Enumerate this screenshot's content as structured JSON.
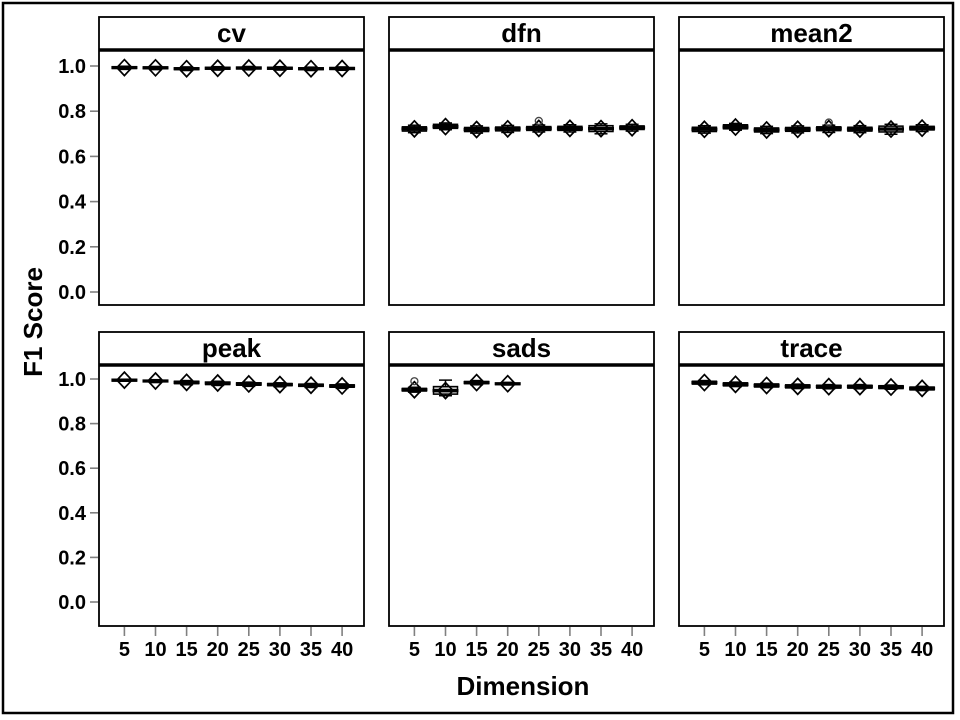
{
  "chart_data": {
    "type": "bar",
    "subtype": "boxplot-trellis-grid",
    "title": "",
    "xlabel": "Dimension",
    "ylabel": "F1 Score",
    "grid": "off",
    "legend": "none",
    "x_categories": [
      5,
      10,
      15,
      20,
      25,
      30,
      35,
      40
    ],
    "y_tick_labels": [
      "0.0",
      "0.2",
      "0.4",
      "0.6",
      "0.8",
      "1.0"
    ],
    "y_tick_values": [
      0.0,
      0.2,
      0.4,
      0.6,
      0.8,
      1.0
    ],
    "ylim": [
      -0.06,
      1.07
    ],
    "colors": {
      "box_fill": "#a9a9a9",
      "box_stroke": "#000000",
      "median": "#000000",
      "tick": "#808080",
      "frame": "#000000",
      "background": "#ffffff"
    },
    "panels": [
      {
        "title": "cv",
        "boxes": [
          {
            "x": 5,
            "lo": 0.985,
            "q1": 0.989,
            "med": 0.993,
            "q3": 0.997,
            "hi": 0.999
          },
          {
            "x": 10,
            "lo": 0.984,
            "q1": 0.988,
            "med": 0.992,
            "q3": 0.996,
            "hi": 0.998
          },
          {
            "x": 15,
            "lo": 0.98,
            "q1": 0.984,
            "med": 0.988,
            "q3": 0.992,
            "hi": 0.996
          },
          {
            "x": 20,
            "lo": 0.982,
            "q1": 0.986,
            "med": 0.99,
            "q3": 0.994,
            "hi": 0.997
          },
          {
            "x": 25,
            "lo": 0.983,
            "q1": 0.987,
            "med": 0.991,
            "q3": 0.995,
            "hi": 0.998
          },
          {
            "x": 30,
            "lo": 0.982,
            "q1": 0.986,
            "med": 0.99,
            "q3": 0.994,
            "hi": 0.997
          },
          {
            "x": 35,
            "lo": 0.98,
            "q1": 0.984,
            "med": 0.988,
            "q3": 0.992,
            "hi": 0.995
          },
          {
            "x": 40,
            "lo": 0.981,
            "q1": 0.985,
            "med": 0.989,
            "q3": 0.993,
            "hi": 0.996
          }
        ]
      },
      {
        "title": "dfn",
        "boxes": [
          {
            "x": 5,
            "lo": 0.705,
            "q1": 0.712,
            "med": 0.722,
            "q3": 0.731,
            "hi": 0.738
          },
          {
            "x": 10,
            "lo": 0.718,
            "q1": 0.724,
            "med": 0.732,
            "q3": 0.742,
            "hi": 0.748
          },
          {
            "x": 15,
            "lo": 0.703,
            "q1": 0.71,
            "med": 0.719,
            "q3": 0.728,
            "hi": 0.735
          },
          {
            "x": 20,
            "lo": 0.706,
            "q1": 0.713,
            "med": 0.722,
            "q3": 0.73,
            "hi": 0.737
          },
          {
            "x": 25,
            "lo": 0.708,
            "q1": 0.715,
            "med": 0.724,
            "q3": 0.732,
            "hi": 0.739,
            "outliers": [
              0.757
            ]
          },
          {
            "x": 30,
            "lo": 0.708,
            "q1": 0.715,
            "med": 0.724,
            "q3": 0.733,
            "hi": 0.74
          },
          {
            "x": 35,
            "lo": 0.7,
            "q1": 0.71,
            "med": 0.723,
            "q3": 0.736,
            "hi": 0.744
          },
          {
            "x": 40,
            "lo": 0.712,
            "q1": 0.719,
            "med": 0.727,
            "q3": 0.735,
            "hi": 0.742
          }
        ]
      },
      {
        "title": "mean2",
        "boxes": [
          {
            "x": 5,
            "lo": 0.703,
            "q1": 0.71,
            "med": 0.72,
            "q3": 0.729,
            "hi": 0.736
          },
          {
            "x": 10,
            "lo": 0.716,
            "q1": 0.722,
            "med": 0.73,
            "q3": 0.74,
            "hi": 0.746
          },
          {
            "x": 15,
            "lo": 0.701,
            "q1": 0.708,
            "med": 0.717,
            "q3": 0.726,
            "hi": 0.733
          },
          {
            "x": 20,
            "lo": 0.704,
            "q1": 0.711,
            "med": 0.72,
            "q3": 0.728,
            "hi": 0.735
          },
          {
            "x": 25,
            "lo": 0.706,
            "q1": 0.714,
            "med": 0.723,
            "q3": 0.731,
            "hi": 0.738,
            "outliers": [
              0.75
            ]
          },
          {
            "x": 30,
            "lo": 0.705,
            "q1": 0.712,
            "med": 0.721,
            "q3": 0.729,
            "hi": 0.736
          },
          {
            "x": 35,
            "lo": 0.698,
            "q1": 0.708,
            "med": 0.721,
            "q3": 0.734,
            "hi": 0.742
          },
          {
            "x": 40,
            "lo": 0.71,
            "q1": 0.717,
            "med": 0.725,
            "q3": 0.733,
            "hi": 0.74
          }
        ]
      },
      {
        "title": "peak",
        "boxes": [
          {
            "x": 5,
            "lo": 0.99,
            "q1": 0.993,
            "med": 0.995,
            "q3": 0.997,
            "hi": 0.999
          },
          {
            "x": 10,
            "lo": 0.984,
            "q1": 0.988,
            "med": 0.991,
            "q3": 0.994,
            "hi": 0.997
          },
          {
            "x": 15,
            "lo": 0.974,
            "q1": 0.979,
            "med": 0.985,
            "q3": 0.99,
            "hi": 0.993
          },
          {
            "x": 20,
            "lo": 0.971,
            "q1": 0.975,
            "med": 0.982,
            "q3": 0.986,
            "hi": 0.99
          },
          {
            "x": 25,
            "lo": 0.967,
            "q1": 0.972,
            "med": 0.978,
            "q3": 0.983,
            "hi": 0.986
          },
          {
            "x": 30,
            "lo": 0.965,
            "q1": 0.97,
            "med": 0.975,
            "q3": 0.98,
            "hi": 0.983
          },
          {
            "x": 35,
            "lo": 0.962,
            "q1": 0.967,
            "med": 0.972,
            "q3": 0.977,
            "hi": 0.98
          },
          {
            "x": 40,
            "lo": 0.958,
            "q1": 0.963,
            "med": 0.969,
            "q3": 0.974,
            "hi": 0.978
          }
        ]
      },
      {
        "title": "sads",
        "boxes": [
          {
            "x": 5,
            "lo": 0.941,
            "q1": 0.946,
            "med": 0.952,
            "q3": 0.958,
            "hi": 0.963,
            "outliers": [
              0.99
            ]
          },
          {
            "x": 10,
            "lo": 0.925,
            "q1": 0.932,
            "med": 0.948,
            "q3": 0.966,
            "hi": 0.995,
            "fill": "#c6c6c6"
          },
          {
            "x": 15,
            "lo": 0.974,
            "q1": 0.979,
            "med": 0.984,
            "q3": 0.989,
            "hi": 0.993
          },
          {
            "x": 20,
            "lo": 0.973,
            "q1": 0.977,
            "med": 0.979,
            "q3": 0.981,
            "hi": 0.985
          }
        ]
      },
      {
        "title": "trace",
        "boxes": [
          {
            "x": 5,
            "lo": 0.974,
            "q1": 0.977,
            "med": 0.984,
            "q3": 0.99,
            "hi": 0.993
          },
          {
            "x": 10,
            "lo": 0.966,
            "q1": 0.969,
            "med": 0.976,
            "q3": 0.983,
            "hi": 0.986
          },
          {
            "x": 15,
            "lo": 0.961,
            "q1": 0.964,
            "med": 0.971,
            "q3": 0.978,
            "hi": 0.981
          },
          {
            "x": 20,
            "lo": 0.957,
            "q1": 0.96,
            "med": 0.967,
            "q3": 0.974,
            "hi": 0.977
          },
          {
            "x": 25,
            "lo": 0.956,
            "q1": 0.959,
            "med": 0.966,
            "q3": 0.972,
            "hi": 0.975
          },
          {
            "x": 30,
            "lo": 0.956,
            "q1": 0.959,
            "med": 0.966,
            "q3": 0.972,
            "hi": 0.975
          },
          {
            "x": 35,
            "lo": 0.954,
            "q1": 0.957,
            "med": 0.964,
            "q3": 0.97,
            "hi": 0.973
          },
          {
            "x": 40,
            "lo": 0.948,
            "q1": 0.951,
            "med": 0.958,
            "q3": 0.964,
            "hi": 0.967
          }
        ]
      }
    ]
  }
}
